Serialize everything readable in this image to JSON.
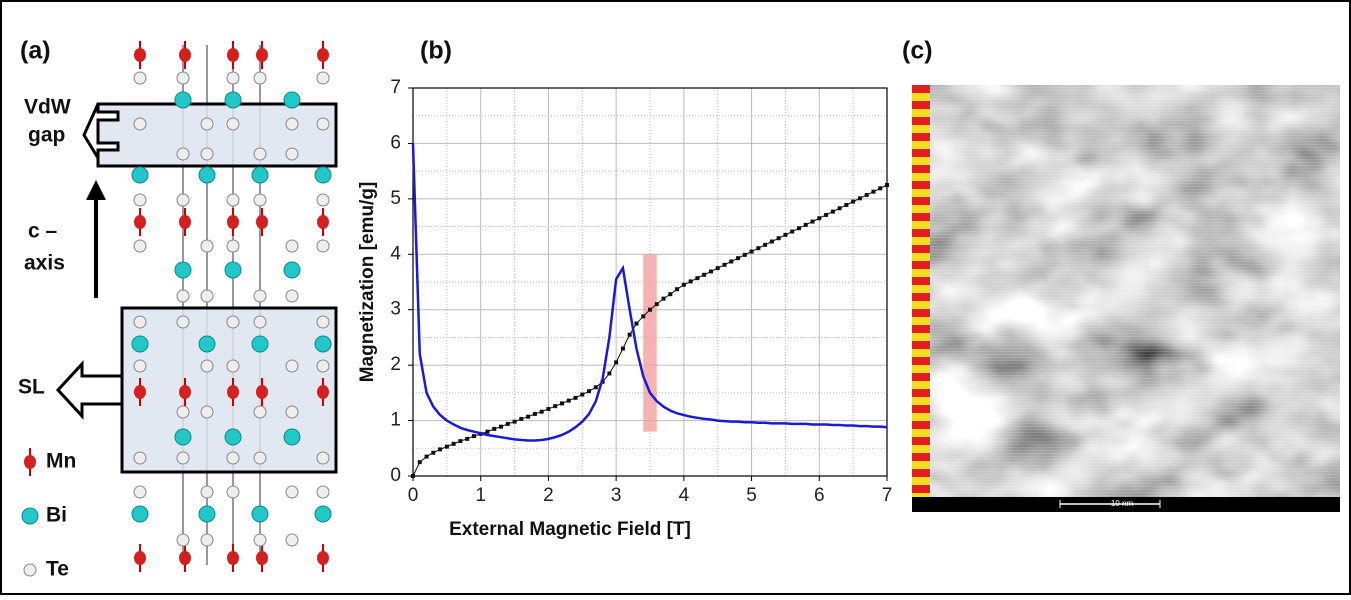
{
  "panel_a": {
    "label": "(a)",
    "vdw_gap": [
      "VdW",
      "gap"
    ],
    "c_axis": [
      "c –",
      "axis"
    ],
    "sl": "SL",
    "legend": [
      "Mn",
      "Bi",
      "Te"
    ]
  },
  "panel_b": {
    "label": "(b)"
  },
  "panel_c": {
    "label": "(c)",
    "scale_bar": "10 nm"
  },
  "chart_data": {
    "type": "line",
    "x_label": "External Magnetic Field [T]",
    "y_label": "Magnetization [emu/g]",
    "x": [
      0,
      0.1,
      0.2,
      0.3,
      0.4,
      0.5,
      0.6,
      0.7,
      0.8,
      0.9,
      1.0,
      1.1,
      1.2,
      1.3,
      1.4,
      1.5,
      1.6,
      1.7,
      1.8,
      1.9,
      2.0,
      2.1,
      2.2,
      2.3,
      2.4,
      2.5,
      2.6,
      2.7,
      2.8,
      2.9,
      3.0,
      3.1,
      3.2,
      3.3,
      3.4,
      3.5,
      3.6,
      3.7,
      3.8,
      3.9,
      4.0,
      4.1,
      4.2,
      4.3,
      4.4,
      4.5,
      4.6,
      4.7,
      4.8,
      4.9,
      5.0,
      5.1,
      5.2,
      5.3,
      5.4,
      5.5,
      5.6,
      5.7,
      5.8,
      5.9,
      6.0,
      6.1,
      6.2,
      6.3,
      6.4,
      6.5,
      6.6,
      6.7,
      6.8,
      6.9,
      7.0
    ],
    "series": [
      {
        "color": "#111111",
        "markers": true,
        "values": [
          0,
          0.25,
          0.35,
          0.42,
          0.48,
          0.53,
          0.58,
          0.63,
          0.67,
          0.72,
          0.76,
          0.8,
          0.85,
          0.89,
          0.94,
          0.98,
          1.03,
          1.07,
          1.12,
          1.16,
          1.21,
          1.26,
          1.31,
          1.36,
          1.41,
          1.47,
          1.53,
          1.6,
          1.7,
          1.85,
          2.05,
          2.3,
          2.55,
          2.75,
          2.88,
          3.0,
          3.1,
          3.2,
          3.28,
          3.37,
          3.45,
          3.51,
          3.57,
          3.63,
          3.69,
          3.75,
          3.81,
          3.87,
          3.93,
          3.99,
          4.05,
          4.11,
          4.17,
          4.23,
          4.29,
          4.35,
          4.41,
          4.47,
          4.53,
          4.59,
          4.65,
          4.71,
          4.77,
          4.83,
          4.89,
          4.95,
          5.01,
          5.07,
          5.13,
          5.19,
          5.25
        ]
      },
      {
        "color": "#1a1ad6",
        "markers": false,
        "values": [
          6.0,
          2.2,
          1.5,
          1.25,
          1.1,
          1.0,
          0.93,
          0.87,
          0.83,
          0.8,
          0.77,
          0.74,
          0.72,
          0.7,
          0.68,
          0.66,
          0.65,
          0.64,
          0.64,
          0.65,
          0.67,
          0.7,
          0.74,
          0.8,
          0.88,
          0.98,
          1.12,
          1.35,
          1.75,
          2.5,
          3.55,
          3.75,
          3.0,
          2.3,
          1.8,
          1.5,
          1.35,
          1.25,
          1.18,
          1.13,
          1.1,
          1.07,
          1.05,
          1.03,
          1.02,
          1.0,
          0.99,
          0.98,
          0.98,
          0.97,
          0.97,
          0.96,
          0.96,
          0.95,
          0.95,
          0.95,
          0.94,
          0.94,
          0.94,
          0.93,
          0.93,
          0.93,
          0.92,
          0.92,
          0.91,
          0.91,
          0.9,
          0.9,
          0.89,
          0.89,
          0.88
        ]
      }
    ],
    "highlight": {
      "x": [
        3.4,
        3.6
      ],
      "y": [
        0.8,
        4.0
      ],
      "color": "#f4a0a0"
    },
    "xlim": [
      0,
      7
    ],
    "ylim": [
      0,
      7
    ],
    "xticks": [
      0,
      1,
      2,
      3,
      4,
      5,
      6,
      7
    ],
    "yticks": [
      0,
      1,
      2,
      3,
      4,
      5,
      6,
      7
    ],
    "grid": true,
    "minor_grid": true
  }
}
